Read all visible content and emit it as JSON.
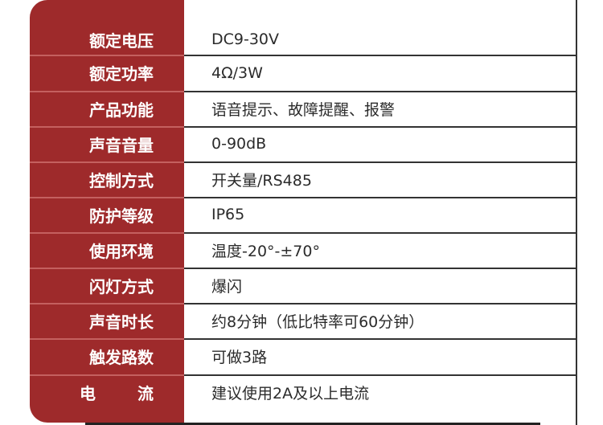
{
  "specs": [
    {
      "label": "额定电压",
      "value": "DC9-30V"
    },
    {
      "label": "额定功率",
      "value": "4Ω/3W"
    },
    {
      "label": "产品功能",
      "value": "语音提示、故障提醒、报警"
    },
    {
      "label": "声音音量",
      "value": "0-90dB"
    },
    {
      "label": "控制方式",
      "value": "开关量/RS485"
    },
    {
      "label": "防护等级",
      "value": "IP65"
    },
    {
      "label": "使用环境",
      "value": "温度-20°-±70°"
    },
    {
      "label": "闪灯方式",
      "value": "爆闪"
    },
    {
      "label": "声音时长",
      "value": "约8分钟（低比特率可60分钟）"
    },
    {
      "label": "触发路数",
      "value": "可做3路"
    },
    {
      "label_a": "电",
      "label_b": "流",
      "value": "建议使用2A及以上电流"
    }
  ],
  "colors": {
    "label_bg": "#9e2a2b",
    "text": "#2b2b2b"
  }
}
